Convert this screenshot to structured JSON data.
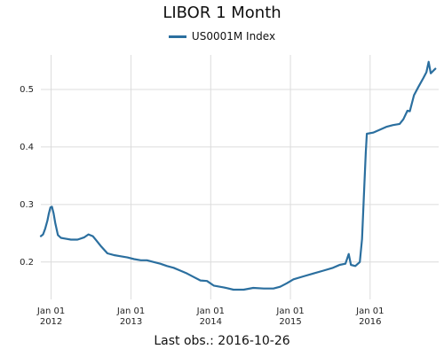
{
  "chart_data": {
    "type": "line",
    "title": "LIBOR 1 Month",
    "legend": {
      "position": "top-center",
      "label": "US0001M Index"
    },
    "footer": "Last obs.: 2016-10-26",
    "xlabel": "",
    "ylabel": "",
    "grid": true,
    "x_range": [
      "2011-11-15",
      "2016-11-10"
    ],
    "ylim": [
      0.135,
      0.56
    ],
    "y_ticks": [
      "0.2",
      "0.3",
      "0.4",
      "0.5"
    ],
    "x_ticks": [
      {
        "date": "2012-01-01",
        "line1": "Jan 01",
        "line2": "2012"
      },
      {
        "date": "2013-01-01",
        "line1": "Jan 01",
        "line2": "2013"
      },
      {
        "date": "2014-01-01",
        "line1": "Jan 01",
        "line2": "2014"
      },
      {
        "date": "2015-01-01",
        "line1": "Jan 01",
        "line2": "2015"
      },
      {
        "date": "2016-01-01",
        "line1": "Jan 01",
        "line2": "2016"
      }
    ],
    "series": [
      {
        "name": "US0001M Index",
        "color": "#2b6f9f",
        "points": [
          [
            "2011-11-15",
            0.245
          ],
          [
            "2011-11-25",
            0.248
          ],
          [
            "2011-12-05",
            0.258
          ],
          [
            "2011-12-15",
            0.272
          ],
          [
            "2011-12-22",
            0.285
          ],
          [
            "2011-12-29",
            0.295
          ],
          [
            "2012-01-05",
            0.296
          ],
          [
            "2012-01-12",
            0.285
          ],
          [
            "2012-01-20",
            0.268
          ],
          [
            "2012-02-01",
            0.247
          ],
          [
            "2012-02-15",
            0.242
          ],
          [
            "2012-03-01",
            0.241
          ],
          [
            "2012-04-01",
            0.239
          ],
          [
            "2012-05-01",
            0.239
          ],
          [
            "2012-06-01",
            0.243
          ],
          [
            "2012-06-20",
            0.248
          ],
          [
            "2012-07-10",
            0.245
          ],
          [
            "2012-07-25",
            0.238
          ],
          [
            "2012-08-15",
            0.228
          ],
          [
            "2012-09-15",
            0.215
          ],
          [
            "2012-10-15",
            0.212
          ],
          [
            "2012-11-15",
            0.21
          ],
          [
            "2012-12-15",
            0.208
          ],
          [
            "2013-01-15",
            0.205
          ],
          [
            "2013-02-15",
            0.203
          ],
          [
            "2013-03-15",
            0.203
          ],
          [
            "2013-04-15",
            0.2
          ],
          [
            "2013-05-15",
            0.197
          ],
          [
            "2013-06-15",
            0.193
          ],
          [
            "2013-07-15",
            0.19
          ],
          [
            "2013-08-15",
            0.185
          ],
          [
            "2013-09-15",
            0.18
          ],
          [
            "2013-10-15",
            0.174
          ],
          [
            "2013-11-15",
            0.168
          ],
          [
            "2013-12-15",
            0.167
          ],
          [
            "2014-01-15",
            0.159
          ],
          [
            "2014-03-01",
            0.156
          ],
          [
            "2014-04-15",
            0.152
          ],
          [
            "2014-06-01",
            0.152
          ],
          [
            "2014-07-15",
            0.155
          ],
          [
            "2014-09-01",
            0.154
          ],
          [
            "2014-10-15",
            0.154
          ],
          [
            "2014-11-15",
            0.157
          ],
          [
            "2014-12-15",
            0.163
          ],
          [
            "2015-01-15",
            0.17
          ],
          [
            "2015-03-01",
            0.175
          ],
          [
            "2015-04-15",
            0.18
          ],
          [
            "2015-06-01",
            0.185
          ],
          [
            "2015-07-15",
            0.19
          ],
          [
            "2015-08-15",
            0.195
          ],
          [
            "2015-09-10",
            0.197
          ],
          [
            "2015-09-25",
            0.214
          ],
          [
            "2015-10-05",
            0.195
          ],
          [
            "2015-10-25",
            0.193
          ],
          [
            "2015-11-15",
            0.2
          ],
          [
            "2015-11-25",
            0.24
          ],
          [
            "2015-12-05",
            0.33
          ],
          [
            "2015-12-12",
            0.39
          ],
          [
            "2015-12-17",
            0.423
          ],
          [
            "2016-01-15",
            0.425
          ],
          [
            "2016-02-15",
            0.43
          ],
          [
            "2016-03-15",
            0.435
          ],
          [
            "2016-04-15",
            0.438
          ],
          [
            "2016-05-15",
            0.44
          ],
          [
            "2016-06-01",
            0.448
          ],
          [
            "2016-06-20",
            0.463
          ],
          [
            "2016-07-01",
            0.462
          ],
          [
            "2016-07-20",
            0.49
          ],
          [
            "2016-08-10",
            0.505
          ],
          [
            "2016-09-01",
            0.52
          ],
          [
            "2016-09-15",
            0.53
          ],
          [
            "2016-09-25",
            0.548
          ],
          [
            "2016-10-05",
            0.528
          ],
          [
            "2016-10-15",
            0.532
          ],
          [
            "2016-10-26",
            0.536
          ]
        ]
      }
    ]
  }
}
